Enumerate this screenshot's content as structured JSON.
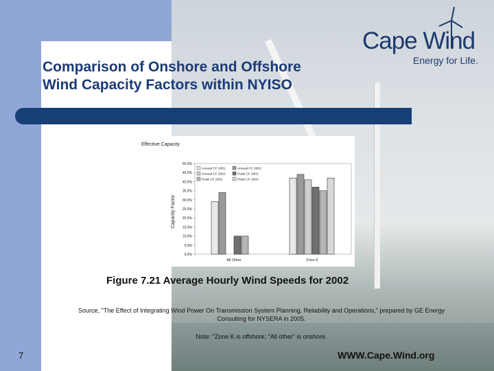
{
  "slide": {
    "title": "Comparison of Onshore and Offshore\nWind Capacity Factors within NYISO",
    "figure_caption": "Figure 7.21 Average Hourly Wind Speeds for 2002",
    "source": "Source, \"The Effect of Integrating Wind Power On Transmission System Planning, Reliability and Operations,\" prepared by GE Energy Consulting for NYSERA in 2005.",
    "note": "Note: \"Zone K is offshore; \"All other\" is onshore.",
    "slide_number": "7",
    "website": "WWW.Cape.Wind.org"
  },
  "logo": {
    "name": "Cape Wind",
    "tagline": "Energy for Life."
  },
  "colors": {
    "title": "#1b3a78",
    "bar": "#173e75",
    "side_band": "#8fa6d6"
  },
  "chart_data": {
    "type": "bar",
    "title": "Effective Capacity",
    "ylabel": "Capacity Factor",
    "categories": [
      "All Other",
      "Zone K"
    ],
    "ylim": [
      0,
      50
    ],
    "ytick_labels": [
      "0.0%",
      "5.0%",
      "10.0%",
      "15.0%",
      "20.0%",
      "25.0%",
      "30.0%",
      "35.0%",
      "40.0%",
      "45.0%",
      "50.0%"
    ],
    "series": [
      {
        "name": "Annual CF 2001",
        "color": "#e8e8e8",
        "values": [
          29,
          42
        ]
      },
      {
        "name": "Annual CF 2002",
        "color": "#9a9a9a",
        "values": [
          34,
          44
        ]
      },
      {
        "name": "Annual CF 2003",
        "color": "#cfcfcf",
        "values": [
          0,
          41
        ]
      },
      {
        "name": "Peak CF 2001",
        "color": "#6f6f6f",
        "values": [
          10,
          37
        ]
      },
      {
        "name": "Peak CF 2002",
        "color": "#b5b5b5",
        "values": [
          10,
          35
        ]
      },
      {
        "name": "Peak CF 2003",
        "color": "#d9d9d9",
        "values": [
          0,
          42
        ]
      }
    ],
    "legend_position": "top-left",
    "grid": false
  }
}
